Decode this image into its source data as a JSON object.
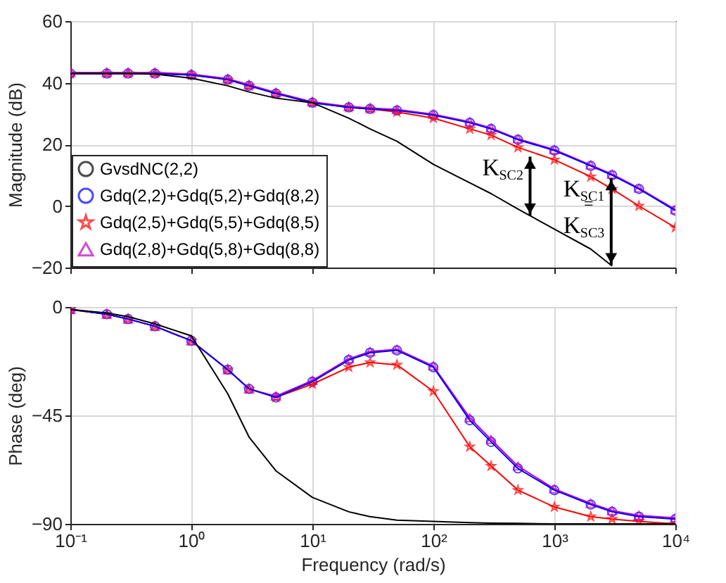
{
  "chart_data": [
    {
      "type": "line",
      "ylabel": "Magnitude (dB)",
      "x": [
        0.1,
        0.2,
        0.3,
        0.5,
        1,
        2,
        3,
        5,
        10,
        20,
        30,
        50,
        100,
        200,
        300,
        500,
        1000,
        2000,
        3000,
        5000,
        10000
      ],
      "series": [
        {
          "name": "GvsdNC(2,2)",
          "color": "#000000",
          "marker": "none",
          "values": [
            43,
            43,
            43,
            42.8,
            41.5,
            39,
            37,
            35,
            33.5,
            28.5,
            25,
            21,
            13.5,
            7.5,
            4,
            -1,
            -7.5,
            -14,
            -19.5,
            null,
            null
          ]
        },
        {
          "name": "Gdq(2,2)+Gdq(5,2)+Gdq(8,2)",
          "color": "#0000ff",
          "marker": "circle",
          "values": [
            43,
            43,
            43,
            43,
            42.5,
            41,
            39,
            36.5,
            33.5,
            32,
            31.5,
            31,
            29.5,
            27,
            25,
            21.5,
            18,
            13,
            10,
            5.5,
            -1.5
          ]
        },
        {
          "name": "Gdq(2,5)+Gdq(5,5)+Gdq(8,5)",
          "color": "#ff0000",
          "marker": "star",
          "values": [
            43,
            43,
            43,
            43,
            42.5,
            41,
            39,
            36.5,
            33.5,
            32,
            31.5,
            30.5,
            28.5,
            25,
            23,
            19,
            15,
            9.5,
            5.5,
            0,
            -7
          ]
        },
        {
          "name": "Gdq(2,8)+Gdq(5,8)+Gdq(8,8)",
          "color": "#bf00bf",
          "marker": "triangle",
          "values": [
            43.3,
            43.3,
            43.3,
            43.3,
            42.8,
            41.3,
            39.3,
            36.8,
            33.8,
            32.3,
            31.8,
            31.3,
            29.8,
            27.3,
            25.3,
            21.8,
            18.3,
            13.3,
            10.3,
            5.8,
            -1.2
          ]
        }
      ],
      "xlim": [
        0.1,
        10000
      ],
      "xticks": [
        0.1,
        1,
        10,
        100,
        1000,
        10000
      ],
      "ylim": [
        -20,
        60
      ],
      "yticks": [
        -20,
        0,
        20,
        40,
        60
      ],
      "log": "x",
      "grid": true,
      "legend": "bottom left",
      "tick_labels": "y",
      "annotations": [
        {
          "text": "K$_{SC2}$",
          "x": 630,
          "y": 16
        },
        {
          "text": "K$_{SC1}$ = K$_{SC3}$",
          "x": 2950,
          "y": 9
        }
      ]
    },
    {
      "type": "line",
      "xlabel": "Frequency  (rad/s)",
      "ylabel": "Phase (deg)",
      "x": [
        0.1,
        0.2,
        0.3,
        0.5,
        1,
        2,
        3,
        5,
        10,
        20,
        30,
        50,
        100,
        200,
        300,
        500,
        1000,
        2000,
        3000,
        5000,
        10000
      ],
      "series": [
        {
          "color": "#000000",
          "marker": "none",
          "values": [
            -1,
            -2.5,
            -4,
            -7,
            -12,
            -36,
            -54,
            -68,
            -79,
            -85,
            -87,
            -88.5,
            -89,
            -89.5,
            -89.7,
            -89.8,
            -90,
            -90,
            -90,
            -90,
            -90
          ]
        },
        {
          "color": "#0000ff",
          "marker": "circle",
          "values": [
            -1,
            -3,
            -5,
            -8,
            -14,
            -26,
            -34,
            -37.5,
            -31,
            -22,
            -19,
            -18,
            -25,
            -47,
            -56,
            -67,
            -76,
            -82,
            -85,
            -87,
            -88
          ]
        },
        {
          "color": "#ff0000",
          "marker": "star",
          "values": [
            -1,
            -3,
            -5,
            -8,
            -14,
            -26,
            -34,
            -37.5,
            -32,
            -25,
            -23,
            -24,
            -35,
            -58,
            -66,
            -76,
            -83,
            -87,
            -88,
            -89,
            -90
          ]
        },
        {
          "color": "#bf00bf",
          "marker": "triangle",
          "values": [
            -1,
            -3,
            -5,
            -8,
            -14,
            -26,
            -34,
            -37,
            -30.5,
            -21.5,
            -18.5,
            -17.5,
            -24.5,
            -46,
            -55,
            -66,
            -75.5,
            -81.5,
            -84.5,
            -86.5,
            -87.5
          ]
        }
      ],
      "xlim": [
        0.1,
        10000
      ],
      "xticks": [
        {
          "value": 0.1,
          "label": "10⁻¹"
        },
        {
          "value": 1,
          "label": "10⁰"
        },
        {
          "value": 10,
          "label": "10¹"
        },
        {
          "value": 100,
          "label": "10²"
        },
        {
          "value": 1000,
          "label": "10³"
        },
        {
          "value": 10000,
          "label": "10⁴"
        }
      ],
      "ylim": [
        -90,
        0
      ],
      "yticks": [
        -90,
        -45,
        0
      ],
      "log": "x",
      "grid": true
    }
  ]
}
